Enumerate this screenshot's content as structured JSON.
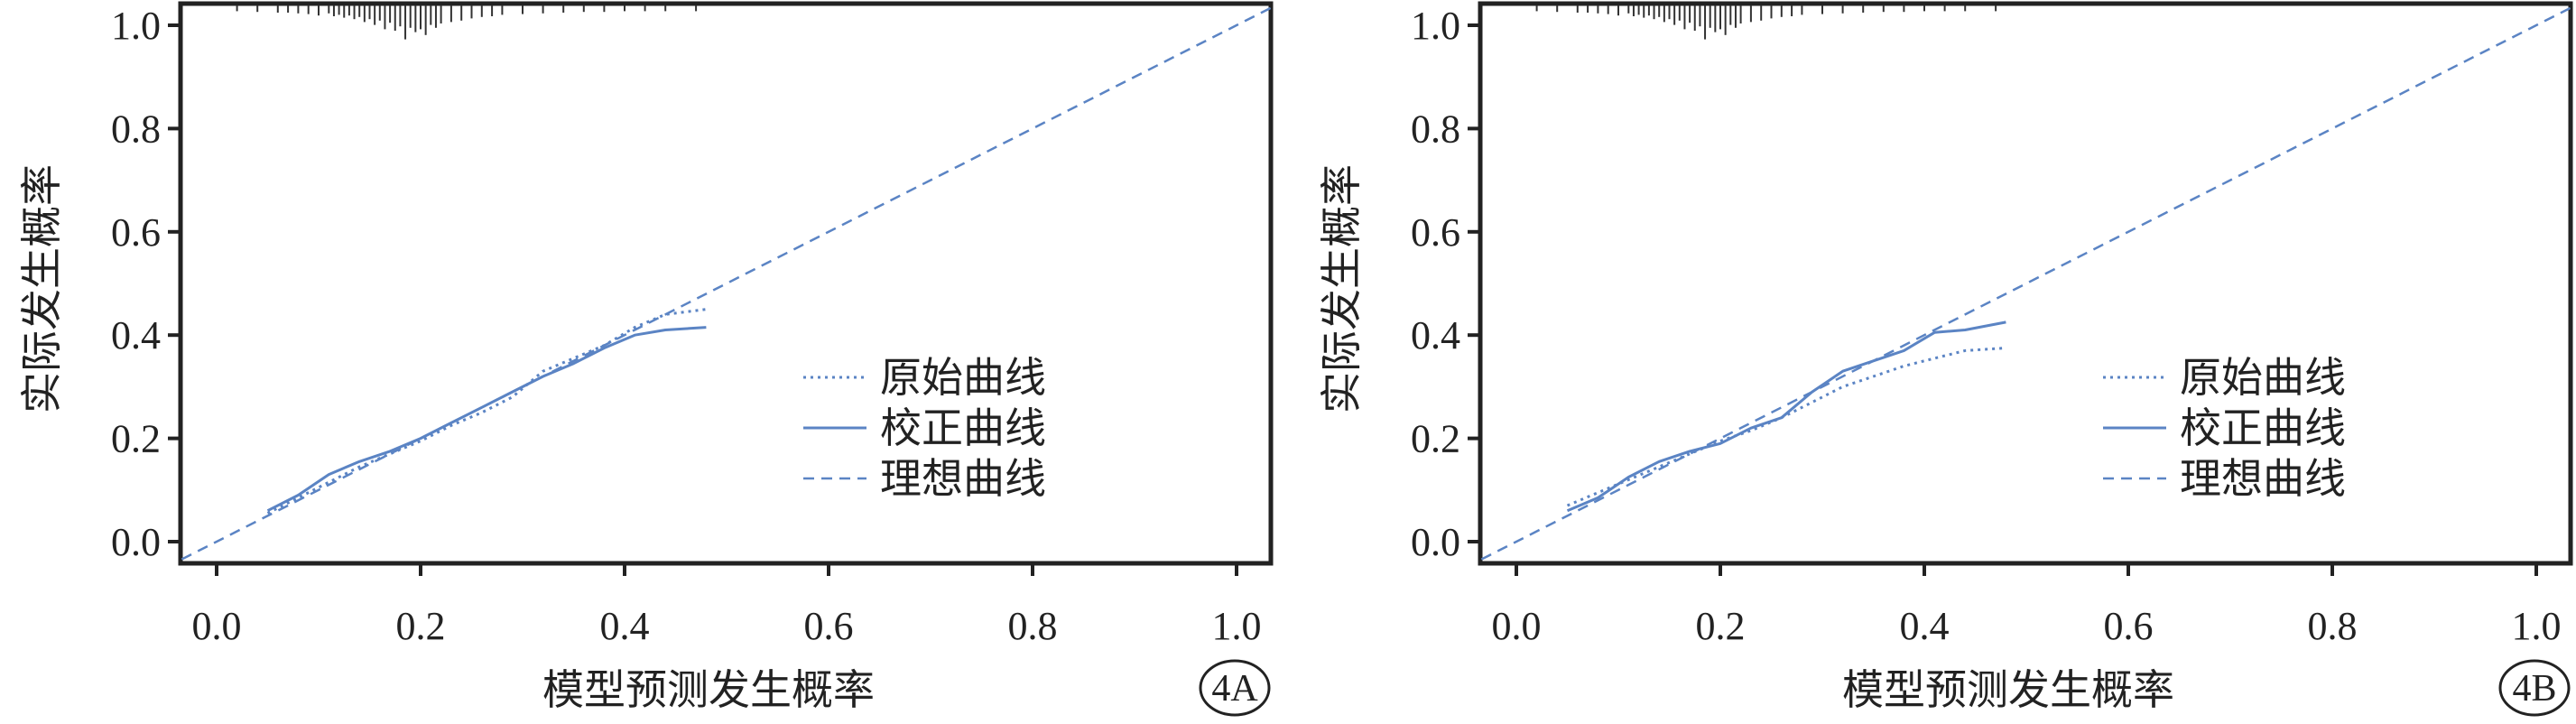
{
  "chart_data": [
    {
      "type": "line",
      "panel_label": "4A",
      "xlabel": "模型预测发生概率",
      "ylabel": "实际发生概率",
      "xlim": [
        0.0,
        1.0
      ],
      "ylim": [
        0.0,
        1.0
      ],
      "xticks": [
        "0.0",
        "0.2",
        "0.4",
        "0.6",
        "0.8",
        "1.0"
      ],
      "yticks": [
        "0.0",
        "0.2",
        "0.4",
        "0.6",
        "0.8",
        "1.0"
      ],
      "legend_position": "bottom-right",
      "grid": false,
      "colors": {
        "series": "#5b84c4",
        "rug": "#333333"
      },
      "series": [
        {
          "name": "原始曲线",
          "style": "dotted",
          "x": [
            0.05,
            0.08,
            0.11,
            0.14,
            0.17,
            0.2,
            0.23,
            0.26,
            0.29,
            0.32,
            0.35,
            0.38,
            0.41,
            0.44,
            0.48
          ],
          "y": [
            0.055,
            0.085,
            0.115,
            0.145,
            0.17,
            0.195,
            0.225,
            0.25,
            0.28,
            0.33,
            0.355,
            0.38,
            0.415,
            0.44,
            0.45
          ]
        },
        {
          "name": "校正曲线",
          "style": "solid",
          "x": [
            0.05,
            0.08,
            0.11,
            0.14,
            0.17,
            0.2,
            0.23,
            0.26,
            0.29,
            0.32,
            0.35,
            0.38,
            0.41,
            0.44,
            0.48
          ],
          "y": [
            0.06,
            0.09,
            0.13,
            0.155,
            0.175,
            0.2,
            0.23,
            0.26,
            0.29,
            0.32,
            0.345,
            0.375,
            0.4,
            0.41,
            0.415
          ]
        },
        {
          "name": "理想曲线",
          "style": "dashed",
          "x": [
            -0.05,
            1.05
          ],
          "y": [
            -0.05,
            1.05
          ]
        }
      ],
      "rug_x": [
        0.02,
        0.04,
        0.06,
        0.07,
        0.08,
        0.09,
        0.1,
        0.11,
        0.115,
        0.12,
        0.125,
        0.13,
        0.135,
        0.14,
        0.145,
        0.15,
        0.155,
        0.16,
        0.165,
        0.17,
        0.175,
        0.18,
        0.185,
        0.19,
        0.195,
        0.2,
        0.205,
        0.21,
        0.215,
        0.22,
        0.23,
        0.24,
        0.25,
        0.26,
        0.27,
        0.28,
        0.3,
        0.32,
        0.34,
        0.36,
        0.38,
        0.4,
        0.42,
        0.44,
        0.47
      ],
      "rug_len": [
        0.3,
        0.4,
        0.5,
        0.5,
        0.6,
        0.7,
        0.9,
        0.6,
        1.0,
        0.8,
        1.2,
        0.9,
        1.4,
        1.1,
        1.8,
        1.4,
        2.2,
        1.6,
        2.8,
        1.9,
        3.0,
        2.4,
        4.2,
        2.6,
        3.2,
        2.8,
        3.6,
        2.2,
        2.6,
        2.0,
        1.8,
        1.6,
        1.3,
        1.1,
        1.0,
        0.8,
        0.7,
        0.6,
        0.5,
        0.4,
        0.4,
        0.3,
        0.3,
        0.3,
        0.3
      ]
    },
    {
      "type": "line",
      "panel_label": "4B",
      "xlabel": "模型预测发生概率",
      "ylabel": "实际发生概率",
      "xlim": [
        0.0,
        1.0
      ],
      "ylim": [
        0.0,
        1.0
      ],
      "xticks": [
        "0.0",
        "0.2",
        "0.4",
        "0.6",
        "0.8",
        "1.0"
      ],
      "yticks": [
        "0.0",
        "0.2",
        "0.4",
        "0.6",
        "0.8",
        "1.0"
      ],
      "legend_position": "bottom-right",
      "grid": false,
      "colors": {
        "series": "#5b84c4",
        "rug": "#333333"
      },
      "series": [
        {
          "name": "原始曲线",
          "style": "dotted",
          "x": [
            0.05,
            0.08,
            0.11,
            0.14,
            0.17,
            0.2,
            0.23,
            0.26,
            0.29,
            0.32,
            0.35,
            0.38,
            0.41,
            0.44,
            0.48
          ],
          "y": [
            0.07,
            0.095,
            0.12,
            0.145,
            0.17,
            0.195,
            0.215,
            0.24,
            0.27,
            0.3,
            0.32,
            0.34,
            0.355,
            0.37,
            0.375
          ]
        },
        {
          "name": "校正曲线",
          "style": "solid",
          "x": [
            0.05,
            0.08,
            0.11,
            0.14,
            0.17,
            0.2,
            0.23,
            0.26,
            0.29,
            0.32,
            0.35,
            0.38,
            0.41,
            0.44,
            0.48
          ],
          "y": [
            0.06,
            0.085,
            0.125,
            0.155,
            0.175,
            0.19,
            0.22,
            0.24,
            0.29,
            0.33,
            0.35,
            0.37,
            0.405,
            0.41,
            0.425
          ]
        },
        {
          "name": "理想曲线",
          "style": "dashed",
          "x": [
            -0.05,
            1.05
          ],
          "y": [
            -0.05,
            1.05
          ]
        }
      ],
      "rug_x": [
        0.02,
        0.04,
        0.06,
        0.07,
        0.08,
        0.09,
        0.1,
        0.11,
        0.115,
        0.12,
        0.125,
        0.13,
        0.135,
        0.14,
        0.145,
        0.15,
        0.155,
        0.16,
        0.165,
        0.17,
        0.175,
        0.18,
        0.185,
        0.19,
        0.195,
        0.2,
        0.205,
        0.21,
        0.215,
        0.22,
        0.23,
        0.24,
        0.25,
        0.26,
        0.27,
        0.28,
        0.3,
        0.32,
        0.34,
        0.36,
        0.38,
        0.4,
        0.42,
        0.44,
        0.47
      ],
      "rug_len": [
        0.3,
        0.4,
        0.5,
        0.5,
        0.6,
        0.7,
        0.9,
        0.6,
        1.0,
        0.8,
        1.2,
        0.9,
        1.4,
        1.1,
        1.8,
        1.4,
        2.2,
        1.6,
        2.8,
        1.9,
        3.0,
        2.4,
        4.2,
        2.6,
        3.2,
        2.8,
        3.6,
        2.2,
        2.6,
        2.0,
        1.8,
        1.6,
        1.3,
        1.1,
        1.0,
        0.8,
        0.7,
        0.6,
        0.5,
        0.4,
        0.4,
        0.3,
        0.3,
        0.3,
        0.3
      ]
    }
  ]
}
